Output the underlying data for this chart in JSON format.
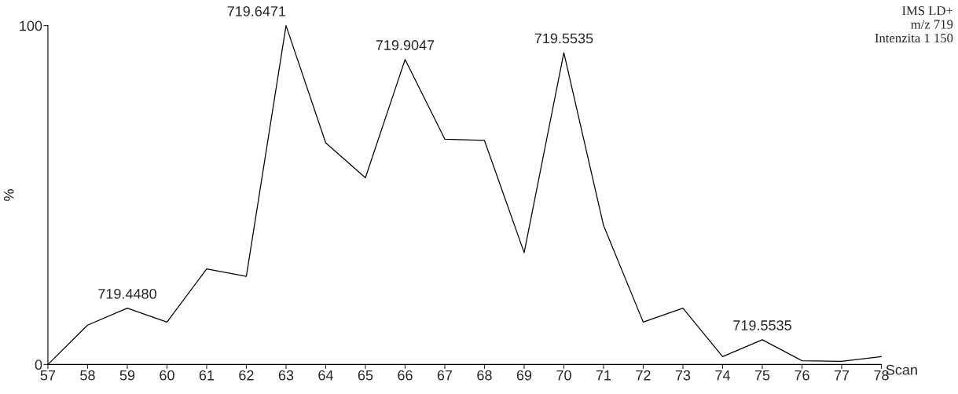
{
  "chart_data": {
    "type": "line",
    "xlabel": "Scan",
    "ylabel": "%",
    "x": [
      57,
      58,
      59,
      60,
      61,
      62,
      63,
      64,
      65,
      66,
      67,
      68,
      69,
      70,
      71,
      72,
      73,
      74,
      75,
      76,
      77,
      78
    ],
    "series": [
      {
        "color": "#000000",
        "values": [
          0,
          11.6,
          16.6,
          12.5,
          28.2,
          26.0,
          100,
          65.4,
          55.1,
          90.0,
          66.5,
          66.1,
          33.0,
          92.0,
          41.0,
          12.5,
          16.6,
          2.3,
          7.3,
          1.1,
          0.9,
          2.3
        ]
      }
    ],
    "xlim": [
      57,
      78
    ],
    "xticks": [
      57,
      58,
      59,
      60,
      61,
      62,
      63,
      64,
      65,
      66,
      67,
      68,
      69,
      70,
      71,
      72,
      73,
      74,
      75,
      76,
      77,
      78
    ],
    "ylim": [
      0,
      100
    ],
    "yticks": [
      0,
      100
    ],
    "annotations": [
      {
        "text": "719.4480",
        "x": 59,
        "y": 16.6
      },
      {
        "text": "719.6471",
        "x": 63,
        "y": 100
      },
      {
        "text": "719.9047",
        "x": 66,
        "y": 90.0
      },
      {
        "text": "719.5535",
        "x": 70,
        "y": 92.0
      },
      {
        "text": "719.5535",
        "x": 75,
        "y": 7.3
      },
      "IMS LD+\nm/z 719\nIntenzita 1 150"
    ],
    "grid": false,
    "marker": "none",
    "line_style": "solid"
  }
}
